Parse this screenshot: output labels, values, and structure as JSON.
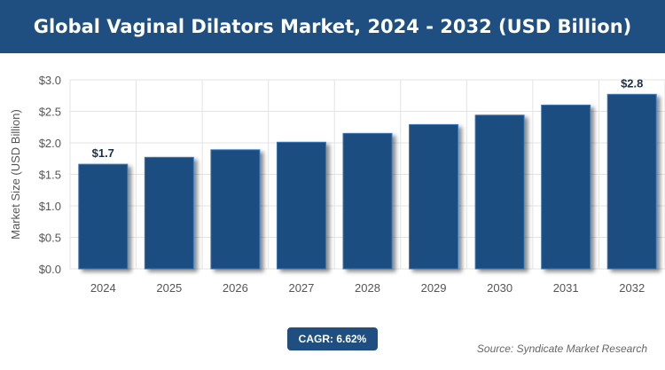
{
  "header": {
    "title": "Global Vaginal Dilators Market, 2024 - 2032 (USD Billion)"
  },
  "chart_data": {
    "type": "bar",
    "title": "Global Vaginal Dilators Market, 2024 - 2032 (USD Billion)",
    "ylabel": "Market Size (USD Billion)",
    "xlabel": "",
    "categories": [
      "2024",
      "2025",
      "2026",
      "2027",
      "2028",
      "2029",
      "2030",
      "2031",
      "2032"
    ],
    "values": [
      1.66,
      1.77,
      1.89,
      2.01,
      2.15,
      2.29,
      2.44,
      2.6,
      2.77
    ],
    "data_labels": {
      "2024": "$1.7",
      "2032": "$2.8"
    },
    "ylim": [
      0,
      3.0
    ],
    "yticks": [
      "$0.0",
      "$0.5",
      "$1.0",
      "$1.5",
      "$2.0",
      "$2.5",
      "$3.0"
    ],
    "grid": true,
    "bar_color": "#1f4e80"
  },
  "footer": {
    "cagr": "CAGR: 6.62%",
    "source": "Source: Syndicate Market Research"
  }
}
